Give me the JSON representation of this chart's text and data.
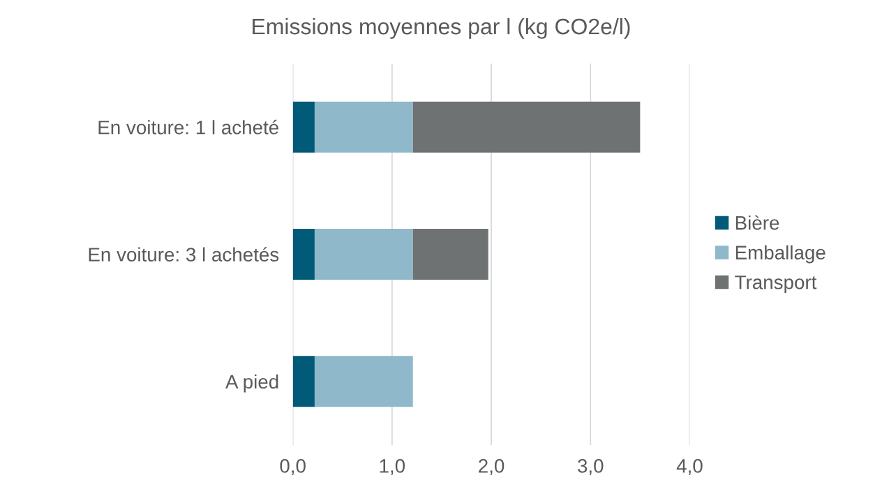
{
  "chart_data": {
    "type": "bar",
    "orientation": "horizontal",
    "stacked": true,
    "title": "Emissions moyennes par l (kg CO2e/l)",
    "categories": [
      "En voiture: 1 l acheté",
      "En voiture: 3 l achetés",
      "A pied"
    ],
    "series": [
      {
        "name": "Bière",
        "color": "#005a78",
        "values": [
          0.22,
          0.22,
          0.22
        ]
      },
      {
        "name": "Emballage",
        "color": "#8fb8ca",
        "values": [
          0.99,
          0.99,
          0.99
        ]
      },
      {
        "name": "Transport",
        "color": "#6f7273",
        "values": [
          2.29,
          0.76,
          0
        ]
      }
    ],
    "xlim": [
      0,
      4
    ],
    "xticks": [
      {
        "value": 0,
        "label": "0,0"
      },
      {
        "value": 1,
        "label": "1,0"
      },
      {
        "value": 2,
        "label": "2,0"
      },
      {
        "value": 3,
        "label": "3,0"
      },
      {
        "value": 4,
        "label": "4,0"
      }
    ],
    "grid": "x",
    "legend": "right"
  }
}
